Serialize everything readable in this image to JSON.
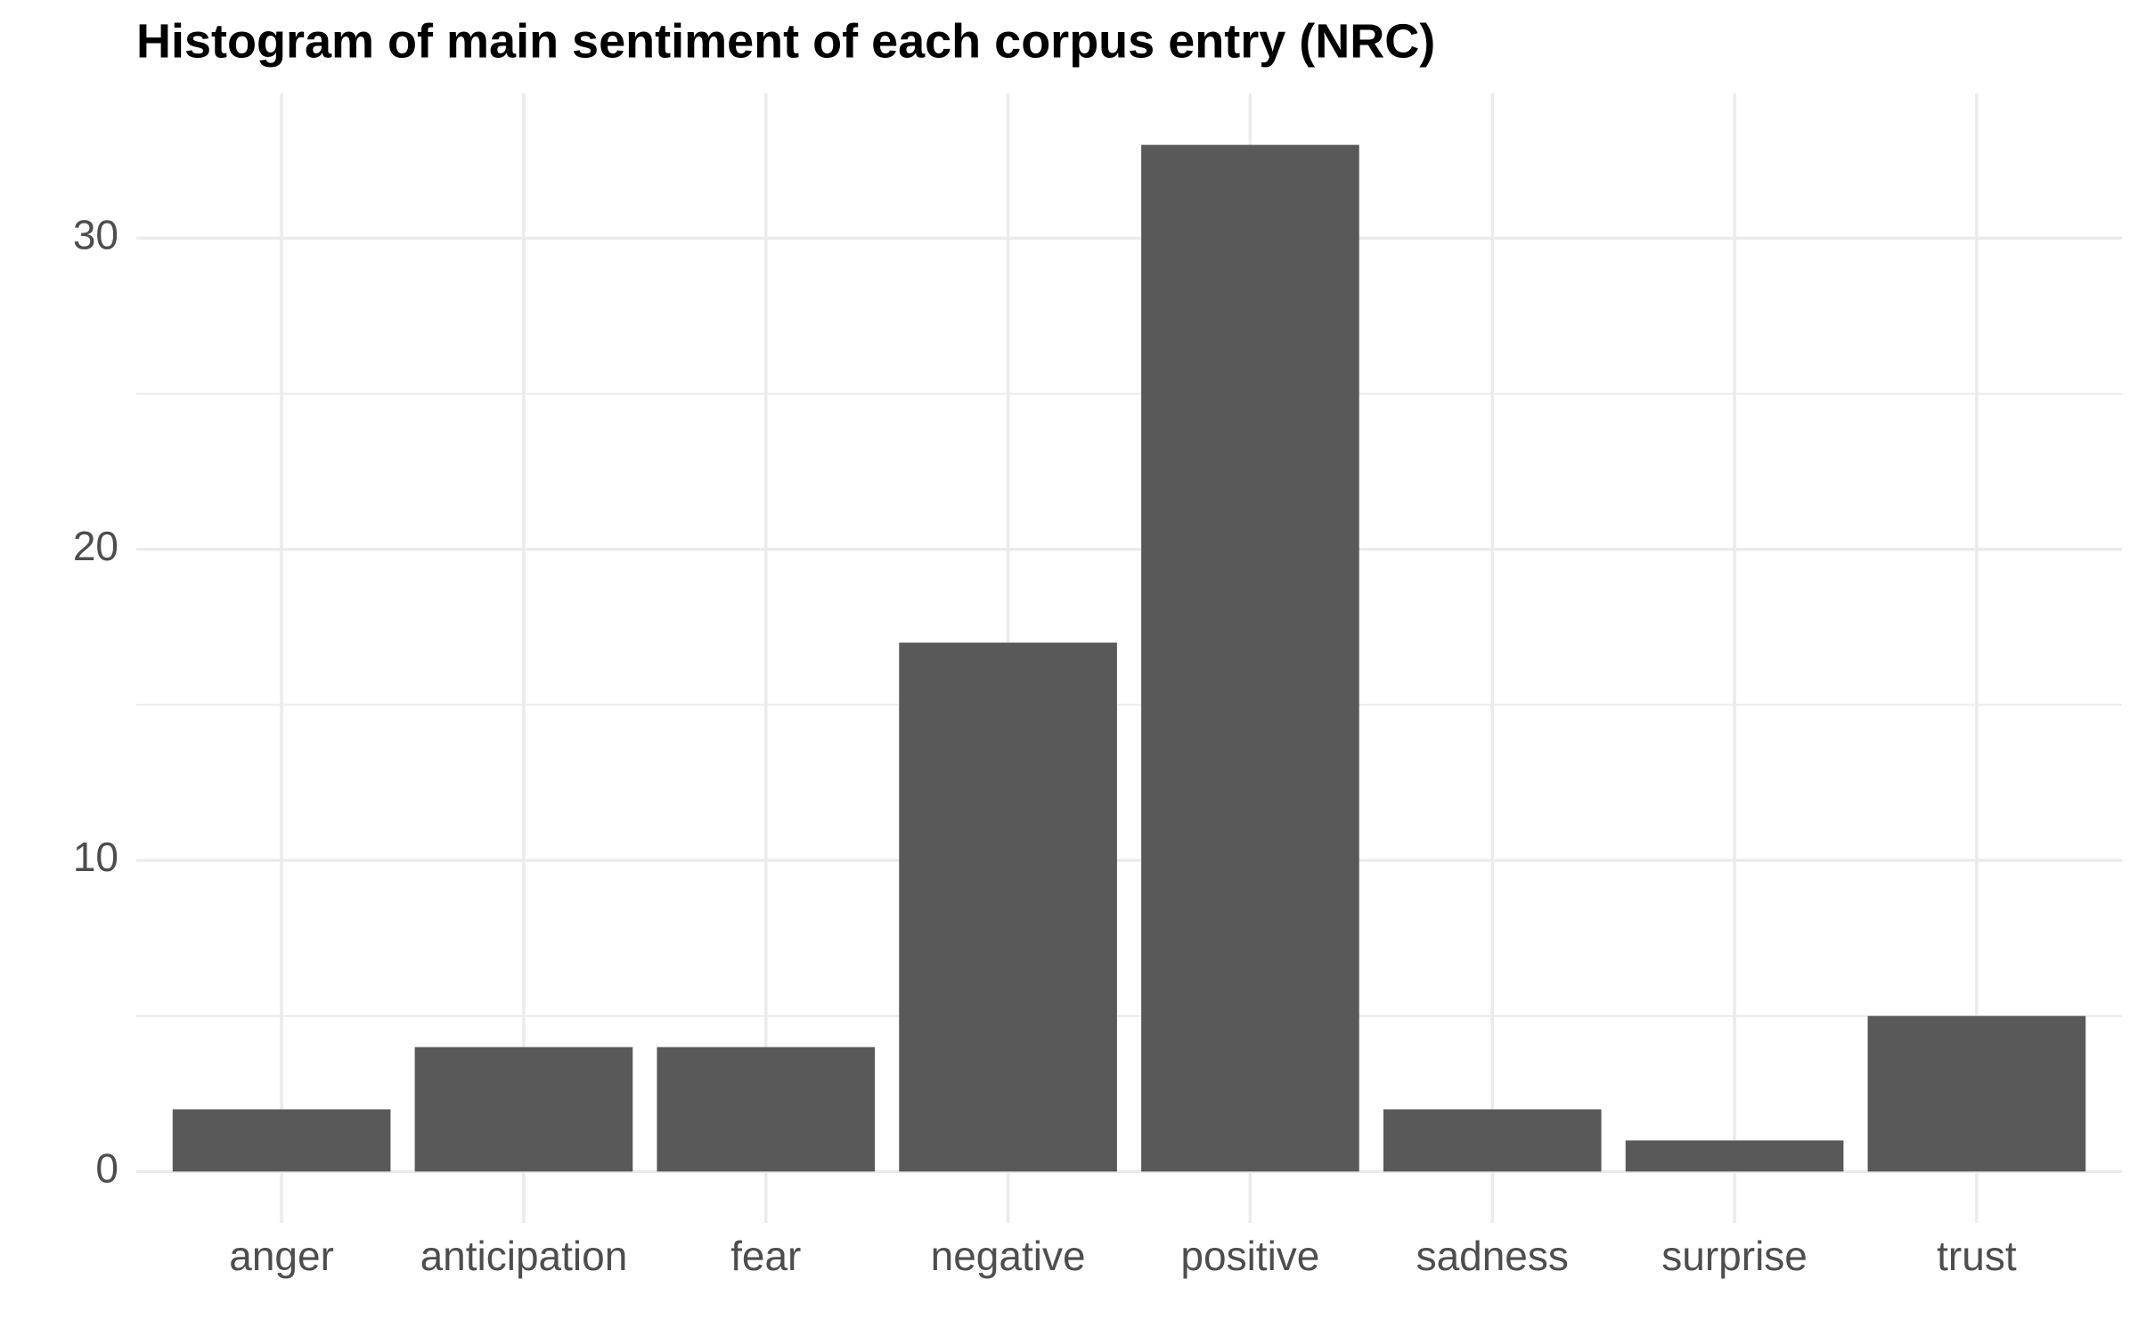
{
  "chart_data": {
    "type": "bar",
    "title": "Histogram of main sentiment of each corpus entry (NRC)",
    "categories": [
      "anger",
      "anticipation",
      "fear",
      "negative",
      "positive",
      "sadness",
      "surprise",
      "trust"
    ],
    "values": [
      2,
      4,
      4,
      17,
      33,
      2,
      1,
      5
    ],
    "color": "#595959",
    "ylim": [
      -1.65,
      34.65
    ],
    "yticks": [
      0,
      10,
      20,
      30
    ],
    "minor_yticks": [
      5,
      15,
      25
    ],
    "grid": true
  }
}
